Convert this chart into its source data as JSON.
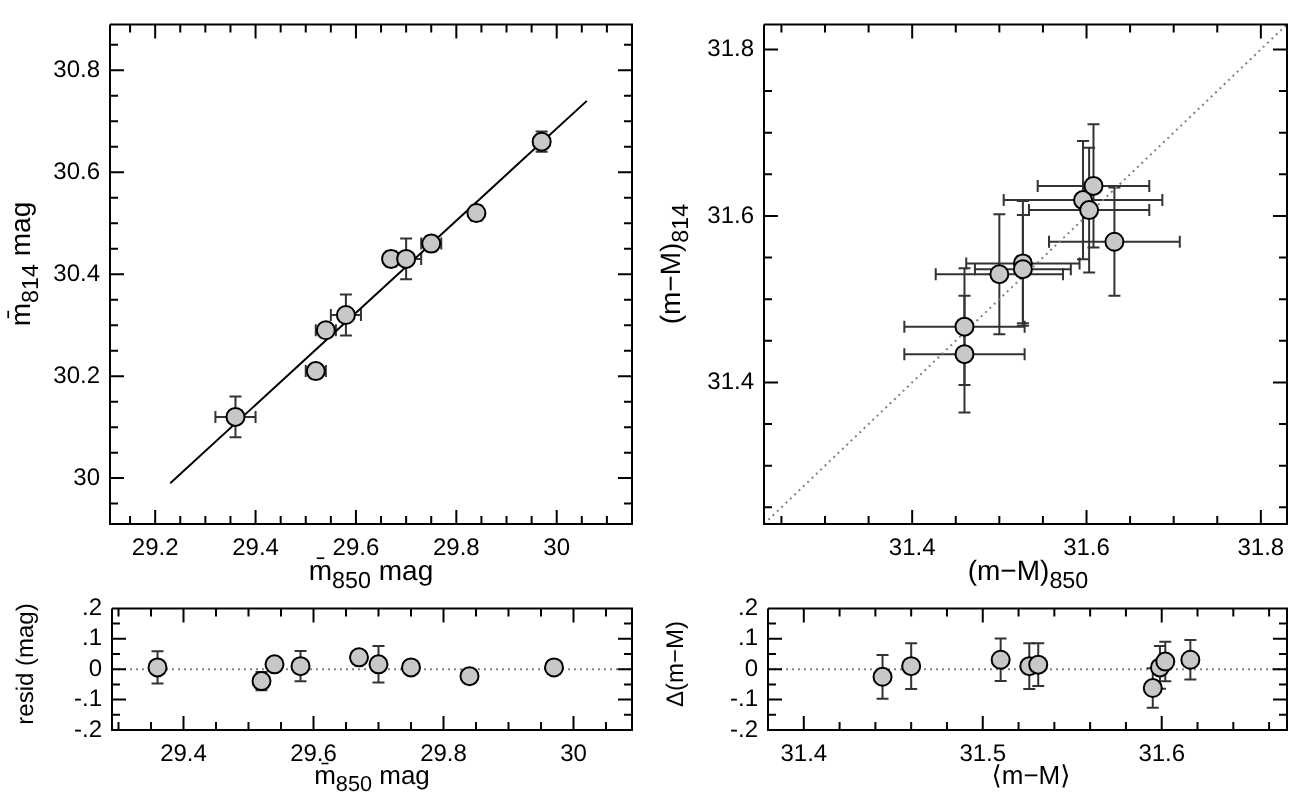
{
  "chart_data": [
    {
      "type": "scatter",
      "xlabel": "m̄$_{850}$  mag",
      "ylabel": "m̄$_{814}$  mag",
      "marker": "circle",
      "xlim": [
        29.11,
        30.15
      ],
      "ylim": [
        29.91,
        30.89
      ],
      "xticks": [
        {
          "value": 29.15,
          "label": null
        },
        29.2,
        {
          "value": 29.25,
          "label": null
        },
        {
          "value": 29.3,
          "label": null
        },
        {
          "value": 29.35,
          "label": null
        },
        29.4,
        {
          "value": 29.45,
          "label": null
        },
        {
          "value": 29.5,
          "label": null
        },
        {
          "value": 29.55,
          "label": null
        },
        29.6,
        {
          "value": 29.65,
          "label": null
        },
        {
          "value": 29.7,
          "label": null
        },
        {
          "value": 29.75,
          "label": null
        },
        29.8,
        {
          "value": 29.85,
          "label": null
        },
        {
          "value": 29.9,
          "label": null
        },
        {
          "value": 29.95,
          "label": null
        },
        30,
        {
          "value": 30.05,
          "label": null
        },
        {
          "value": 30.1,
          "label": null
        }
      ],
      "yticks": [
        {
          "value": 29.95,
          "label": null
        },
        30,
        {
          "value": 30.05,
          "label": null
        },
        {
          "value": 30.1,
          "label": null
        },
        {
          "value": 30.15,
          "label": null
        },
        30.2,
        {
          "value": 30.25,
          "label": null
        },
        {
          "value": 30.3,
          "label": null
        },
        {
          "value": 30.35,
          "label": null
        },
        30.4,
        {
          "value": 30.45,
          "label": null
        },
        {
          "value": 30.5,
          "label": null
        },
        {
          "value": 30.55,
          "label": null
        },
        30.6,
        {
          "value": 30.65,
          "label": null
        },
        {
          "value": 30.7,
          "label": null
        },
        {
          "value": 30.75,
          "label": null
        },
        30.8,
        {
          "value": 30.85,
          "label": null
        }
      ],
      "series": [
        {
          "color": "#c8c8c8",
          "x": [
            29.36,
            29.52,
            29.54,
            29.58,
            29.67,
            29.7,
            29.75,
            29.84,
            29.97
          ],
          "values": [
            30.12,
            30.21,
            30.29,
            30.32,
            30.43,
            30.43,
            30.46,
            30.52,
            30.66
          ],
          "errors": [
            0.04,
            null,
            null,
            0.04,
            0.015,
            0.04,
            0.015,
            0.015,
            0.02
          ],
          "xerrors": [
            0.04,
            0.02,
            0.02,
            0.03,
            0.01,
            0.03,
            0.02,
            0.01,
            null
          ]
        },
        {
          "type": "line",
          "marker": "none",
          "color": "#000000",
          "line_style": "solid",
          "x": [
            29.23,
            30.06
          ],
          "values": [
            29.99,
            30.74
          ]
        }
      ]
    },
    {
      "type": "scatter",
      "xlabel": "(m−M)$_{850}$",
      "ylabel": "(m−M)$_{814}$",
      "marker": "circle",
      "xlim": [
        31.23,
        31.83
      ],
      "ylim": [
        31.23,
        31.83
      ],
      "xticks": [
        {
          "value": 31.25,
          "label": null
        },
        {
          "value": 31.3,
          "label": null
        },
        {
          "value": 31.35,
          "label": null
        },
        31.4,
        {
          "value": 31.45,
          "label": null
        },
        {
          "value": 31.5,
          "label": null
        },
        {
          "value": 31.55,
          "label": null
        },
        31.6,
        {
          "value": 31.65,
          "label": null
        },
        {
          "value": 31.7,
          "label": null
        },
        {
          "value": 31.75,
          "label": null
        },
        31.8
      ],
      "yticks": [
        {
          "value": 31.25,
          "label": null
        },
        {
          "value": 31.3,
          "label": null
        },
        {
          "value": 31.35,
          "label": null
        },
        31.4,
        {
          "value": 31.45,
          "label": null
        },
        {
          "value": 31.5,
          "label": null
        },
        {
          "value": 31.55,
          "label": null
        },
        31.6,
        {
          "value": 31.65,
          "label": null
        },
        {
          "value": 31.7,
          "label": null
        },
        {
          "value": 31.75,
          "label": null
        },
        31.8
      ],
      "series": [
        {
          "type": "line",
          "marker": "none",
          "color": "#808080",
          "line_style": "dotted",
          "x": [
            31.23,
            31.83
          ],
          "values": [
            31.23,
            31.83
          ]
        },
        {
          "color": "#c8c8c8",
          "x": [
            31.46,
            31.46,
            31.5,
            31.527,
            31.527,
            31.596,
            31.603,
            31.608,
            31.632
          ],
          "values": [
            31.467,
            31.434,
            31.53,
            31.543,
            31.536,
            31.619,
            31.607,
            31.636,
            31.569
          ],
          "errors": [
            0.07,
            0.07,
            0.072,
            0.075,
            0.065,
            0.071,
            0.075,
            0.074,
            0.065
          ],
          "xerrors": [
            0.069,
            0.069,
            0.073,
            0.065,
            0.055,
            0.091,
            0.069,
            0.064,
            0.075
          ]
        }
      ]
    },
    {
      "type": "scatter",
      "xlabel": "m̄$_{850}$  mag",
      "ylabel": "resid  (mag)",
      "marker": "circle",
      "xlim": [
        29.29,
        30.09
      ],
      "ylim": [
        -0.2,
        0.2
      ],
      "xticks": [
        {
          "value": 29.3,
          "label": null
        },
        {
          "value": 29.35,
          "label": null
        },
        29.4,
        {
          "value": 29.45,
          "label": null
        },
        {
          "value": 29.5,
          "label": null
        },
        {
          "value": 29.55,
          "label": null
        },
        29.6,
        {
          "value": 29.65,
          "label": null
        },
        {
          "value": 29.7,
          "label": null
        },
        {
          "value": 29.75,
          "label": null
        },
        29.8,
        {
          "value": 29.85,
          "label": null
        },
        {
          "value": 29.9,
          "label": null
        },
        {
          "value": 29.95,
          "label": null
        },
        30,
        {
          "value": 30.05,
          "label": null
        }
      ],
      "yticks": [
        {
          "value": -0.2,
          "label": "-.2"
        },
        {
          "value": -0.15,
          "label": null
        },
        {
          "value": -0.1,
          "label": "-.1"
        },
        {
          "value": -0.05,
          "label": null
        },
        0,
        {
          "value": 0.05,
          "label": null
        },
        {
          "value": 0.1,
          "label": ".1"
        },
        {
          "value": 0.15,
          "label": null
        },
        {
          "value": 0.2,
          "label": ".2"
        }
      ],
      "ref_lines": [
        {
          "axis": "y",
          "value": 0,
          "color": "#808080",
          "line_style": "dotted"
        }
      ],
      "series": [
        {
          "color": "#c8c8c8",
          "x": [
            29.36,
            29.52,
            29.54,
            29.58,
            29.67,
            29.7,
            29.75,
            29.84,
            29.97
          ],
          "values": [
            0.006,
            -0.039,
            0.016,
            0.01,
            0.039,
            0.016,
            0.006,
            -0.023,
            0.006
          ],
          "errors": [
            0.053,
            0.03,
            null,
            0.05,
            null,
            0.06,
            null,
            0.01,
            null
          ]
        }
      ]
    },
    {
      "type": "scatter",
      "xlabel": "⟨m−M⟩",
      "ylabel": "Δ(m−M)",
      "marker": "circle",
      "xlim": [
        31.38,
        31.67
      ],
      "ylim": [
        -0.2,
        0.2
      ],
      "xticks": [
        31.4,
        {
          "value": 31.42,
          "label": null
        },
        {
          "value": 31.44,
          "label": null
        },
        {
          "value": 31.46,
          "label": null
        },
        {
          "value": 31.48,
          "label": null
        },
        31.5,
        {
          "value": 31.52,
          "label": null
        },
        {
          "value": 31.54,
          "label": null
        },
        {
          "value": 31.56,
          "label": null
        },
        {
          "value": 31.58,
          "label": null
        },
        31.6,
        {
          "value": 31.62,
          "label": null
        },
        {
          "value": 31.64,
          "label": null
        },
        {
          "value": 31.66,
          "label": null
        }
      ],
      "yticks": [
        {
          "value": -0.2,
          "label": "-.2"
        },
        {
          "value": -0.15,
          "label": null
        },
        {
          "value": -0.1,
          "label": "-.1"
        },
        {
          "value": -0.05,
          "label": null
        },
        0,
        {
          "value": 0.05,
          "label": null
        },
        {
          "value": 0.1,
          "label": ".1"
        },
        {
          "value": 0.15,
          "label": null
        },
        {
          "value": 0.2,
          "label": ".2"
        }
      ],
      "ref_lines": [
        {
          "axis": "y",
          "value": 0,
          "color": "#808080",
          "line_style": "dotted"
        }
      ],
      "series": [
        {
          "color": "#c8c8c8",
          "x": [
            31.444,
            31.46,
            31.51,
            31.526,
            31.531,
            31.595,
            31.599,
            31.602,
            31.616
          ],
          "values": [
            -0.025,
            0.01,
            0.031,
            0.01,
            0.015,
            -0.062,
            0.006,
            0.025,
            0.031
          ],
          "errors": [
            0.072,
            0.075,
            0.07,
            0.075,
            0.07,
            0.065,
            0.07,
            0.065,
            0.065
          ]
        }
      ]
    }
  ]
}
